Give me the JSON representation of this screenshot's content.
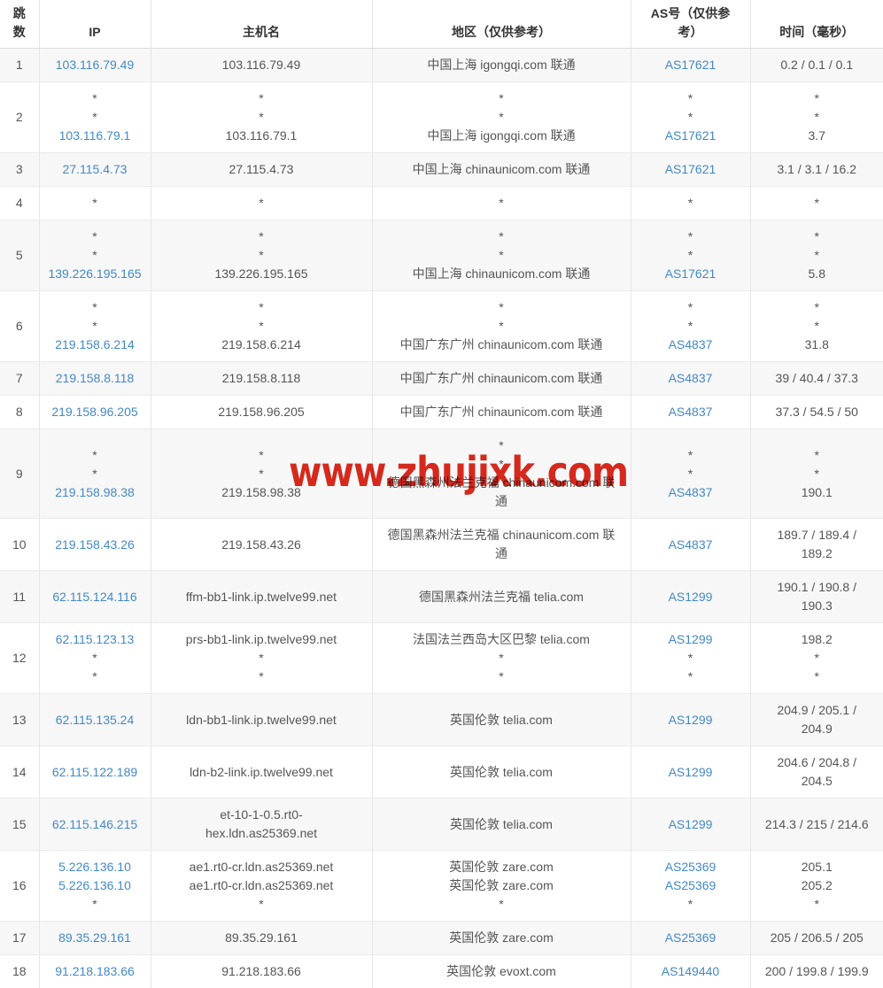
{
  "watermark": {
    "text": "www.zhujixk.com",
    "color": "#dc2a1e"
  },
  "colors": {
    "link_blue": "#4289c7",
    "stripe_gray": "#f7f7f7",
    "text_gray": "#555555",
    "header_text": "#333333"
  },
  "table": {
    "headers": {
      "hop": "跳\n数",
      "ip": "IP",
      "host": "主机名",
      "region": "地区（仅供参考）",
      "asn": "AS号（仅供参\n考）",
      "time": "时间（毫秒）"
    },
    "rows": [
      {
        "hop": "1",
        "ip": [
          {
            "t": "103.116.79.49"
          }
        ],
        "host": [
          {
            "t": "103.116.79.49"
          }
        ],
        "region": [
          {
            "t": "中国上海 igongqi.com 联通"
          }
        ],
        "asn": [
          {
            "t": "AS17621"
          }
        ],
        "time": [
          {
            "t": "0.2 / 0.1 / 0.1"
          }
        ]
      },
      {
        "hop": "2",
        "ip": [
          {
            "t": "*"
          },
          {
            "t": "*"
          },
          {
            "t": "103.116.79.1"
          }
        ],
        "host": [
          {
            "t": "*"
          },
          {
            "t": "*"
          },
          {
            "t": "103.116.79.1"
          }
        ],
        "region": [
          {
            "t": "*"
          },
          {
            "t": "*"
          },
          {
            "t": "中国上海 igongqi.com 联通"
          }
        ],
        "asn": [
          {
            "t": "*"
          },
          {
            "t": "*"
          },
          {
            "t": "AS17621"
          }
        ],
        "time": [
          {
            "t": "*"
          },
          {
            "t": "*"
          },
          {
            "t": "3.7"
          }
        ]
      },
      {
        "hop": "3",
        "ip": [
          {
            "t": "27.115.4.73"
          }
        ],
        "host": [
          {
            "t": "27.115.4.73"
          }
        ],
        "region": [
          {
            "t": "中国上海 chinaunicom.com 联通"
          }
        ],
        "asn": [
          {
            "t": "AS17621"
          }
        ],
        "time": [
          {
            "t": "3.1 / 3.1 / 16.2"
          }
        ]
      },
      {
        "hop": "4",
        "ip": [
          {
            "t": "*"
          }
        ],
        "host": [
          {
            "t": "*"
          }
        ],
        "region": [
          {
            "t": "*"
          }
        ],
        "asn": [
          {
            "t": "*"
          }
        ],
        "time": [
          {
            "t": "*"
          }
        ]
      },
      {
        "hop": "5",
        "ip": [
          {
            "t": "*"
          },
          {
            "t": "*"
          },
          {
            "t": "139.226.195.165"
          }
        ],
        "host": [
          {
            "t": "*"
          },
          {
            "t": "*"
          },
          {
            "t": "139.226.195.165"
          }
        ],
        "region": [
          {
            "t": "*"
          },
          {
            "t": "*"
          },
          {
            "t": "中国上海 chinaunicom.com 联通"
          }
        ],
        "asn": [
          {
            "t": "*"
          },
          {
            "t": "*"
          },
          {
            "t": "AS17621"
          }
        ],
        "time": [
          {
            "t": "*"
          },
          {
            "t": "*"
          },
          {
            "t": "5.8"
          }
        ]
      },
      {
        "hop": "6",
        "ip": [
          {
            "t": "*"
          },
          {
            "t": "*"
          },
          {
            "t": "219.158.6.214"
          }
        ],
        "host": [
          {
            "t": "*"
          },
          {
            "t": "*"
          },
          {
            "t": "219.158.6.214"
          }
        ],
        "region": [
          {
            "t": "*"
          },
          {
            "t": "*"
          },
          {
            "t": "中国广东广州 chinaunicom.com 联通"
          }
        ],
        "asn": [
          {
            "t": "*"
          },
          {
            "t": "*"
          },
          {
            "t": "AS4837"
          }
        ],
        "time": [
          {
            "t": "*"
          },
          {
            "t": "*"
          },
          {
            "t": "31.8"
          }
        ]
      },
      {
        "hop": "7",
        "ip": [
          {
            "t": "219.158.8.118"
          }
        ],
        "host": [
          {
            "t": "219.158.8.118"
          }
        ],
        "region": [
          {
            "t": "中国广东广州 chinaunicom.com 联通"
          }
        ],
        "asn": [
          {
            "t": "AS4837"
          }
        ],
        "time": [
          {
            "t": "39 / 40.4 / 37.3"
          }
        ]
      },
      {
        "hop": "8",
        "ip": [
          {
            "t": "219.158.96.205"
          }
        ],
        "host": [
          {
            "t": "219.158.96.205"
          }
        ],
        "region": [
          {
            "t": "中国广东广州 chinaunicom.com 联通"
          }
        ],
        "asn": [
          {
            "t": "AS4837"
          }
        ],
        "time": [
          {
            "t": "37.3 / 54.5 / 50"
          }
        ]
      },
      {
        "hop": "9",
        "ip": [
          {
            "t": "*"
          },
          {
            "t": "*"
          },
          {
            "t": "219.158.98.38"
          }
        ],
        "host": [
          {
            "t": "*"
          },
          {
            "t": "*"
          },
          {
            "t": "219.158.98.38"
          }
        ],
        "region": [
          {
            "t": "*"
          },
          {
            "t": "*"
          },
          {
            "t": "德国黑森州法兰克福 chinaunicom.com 联\n通"
          }
        ],
        "asn": [
          {
            "t": "*"
          },
          {
            "t": "*"
          },
          {
            "t": "AS4837"
          }
        ],
        "time": [
          {
            "t": "*"
          },
          {
            "t": "*"
          },
          {
            "t": "190.1"
          }
        ]
      },
      {
        "hop": "10",
        "ip": [
          {
            "t": "219.158.43.26"
          }
        ],
        "host": [
          {
            "t": "219.158.43.26"
          }
        ],
        "region": [
          {
            "t": "德国黑森州法兰克福 chinaunicom.com 联\n通"
          }
        ],
        "asn": [
          {
            "t": "AS4837"
          }
        ],
        "time": [
          {
            "t": "189.7 / 189.4 /\n189.2"
          }
        ]
      },
      {
        "hop": "11",
        "ip": [
          {
            "t": "62.115.124.116"
          }
        ],
        "host": [
          {
            "t": "ffm-bb1-link.ip.twelve99.net"
          }
        ],
        "region": [
          {
            "t": "德国黑森州法兰克福 telia.com"
          }
        ],
        "asn": [
          {
            "t": "AS1299"
          }
        ],
        "time": [
          {
            "t": "190.1 / 190.8 /\n190.3"
          }
        ]
      },
      {
        "hop": "12",
        "ip": [
          {
            "t": "62.115.123.13"
          },
          {
            "t": "*"
          },
          {
            "t": "*"
          }
        ],
        "host": [
          {
            "t": "prs-bb1-link.ip.twelve99.net"
          },
          {
            "t": "*"
          },
          {
            "t": "*"
          }
        ],
        "region": [
          {
            "t": "法国法兰西岛大区巴黎 telia.com"
          },
          {
            "t": "*"
          },
          {
            "t": "*"
          }
        ],
        "asn": [
          {
            "t": "AS1299"
          },
          {
            "t": "*"
          },
          {
            "t": "*"
          }
        ],
        "time": [
          {
            "t": "198.2"
          },
          {
            "t": "*"
          },
          {
            "t": "*"
          }
        ]
      },
      {
        "hop": "13",
        "ip": [
          {
            "t": "62.115.135.24"
          }
        ],
        "host": [
          {
            "t": "ldn-bb1-link.ip.twelve99.net"
          }
        ],
        "region": [
          {
            "t": "英国伦敦 telia.com"
          }
        ],
        "asn": [
          {
            "t": "AS1299"
          }
        ],
        "time": [
          {
            "t": "204.9 / 205.1 /\n204.9"
          }
        ]
      },
      {
        "hop": "14",
        "ip": [
          {
            "t": "62.115.122.189"
          }
        ],
        "host": [
          {
            "t": "ldn-b2-link.ip.twelve99.net"
          }
        ],
        "region": [
          {
            "t": "英国伦敦 telia.com"
          }
        ],
        "asn": [
          {
            "t": "AS1299"
          }
        ],
        "time": [
          {
            "t": "204.6 / 204.8 /\n204.5"
          }
        ]
      },
      {
        "hop": "15",
        "ip": [
          {
            "t": "62.115.146.215"
          }
        ],
        "host": [
          {
            "t": "et-10-1-0.5.rt0-\nhex.ldn.as25369.net"
          }
        ],
        "region": [
          {
            "t": "英国伦敦 telia.com"
          }
        ],
        "asn": [
          {
            "t": "AS1299"
          }
        ],
        "time": [
          {
            "t": "214.3 / 215 / 214.6"
          }
        ]
      },
      {
        "hop": "16",
        "ip": [
          {
            "t": "5.226.136.10"
          },
          {
            "t": "5.226.136.10"
          },
          {
            "t": "*"
          }
        ],
        "host": [
          {
            "t": "ae1.rt0-cr.ldn.as25369.net"
          },
          {
            "t": "ae1.rt0-cr.ldn.as25369.net"
          },
          {
            "t": "*"
          }
        ],
        "region": [
          {
            "t": "英国伦敦 zare.com"
          },
          {
            "t": "英国伦敦 zare.com"
          },
          {
            "t": "*"
          }
        ],
        "asn": [
          {
            "t": "AS25369"
          },
          {
            "t": "AS25369"
          },
          {
            "t": "*"
          }
        ],
        "time": [
          {
            "t": "205.1"
          },
          {
            "t": "205.2"
          },
          {
            "t": "*"
          }
        ]
      },
      {
        "hop": "17",
        "ip": [
          {
            "t": "89.35.29.161"
          }
        ],
        "host": [
          {
            "t": "89.35.29.161"
          }
        ],
        "region": [
          {
            "t": "英国伦敦 zare.com"
          }
        ],
        "asn": [
          {
            "t": "AS25369"
          }
        ],
        "time": [
          {
            "t": "205 / 206.5 / 205"
          }
        ]
      },
      {
        "hop": "18",
        "ip": [
          {
            "t": "91.218.183.66"
          }
        ],
        "host": [
          {
            "t": "91.218.183.66"
          }
        ],
        "region": [
          {
            "t": "英国伦敦 evoxt.com"
          }
        ],
        "asn": [
          {
            "t": "AS149440"
          }
        ],
        "time": [
          {
            "t": "200 / 199.8 / 199.9"
          }
        ]
      }
    ]
  }
}
